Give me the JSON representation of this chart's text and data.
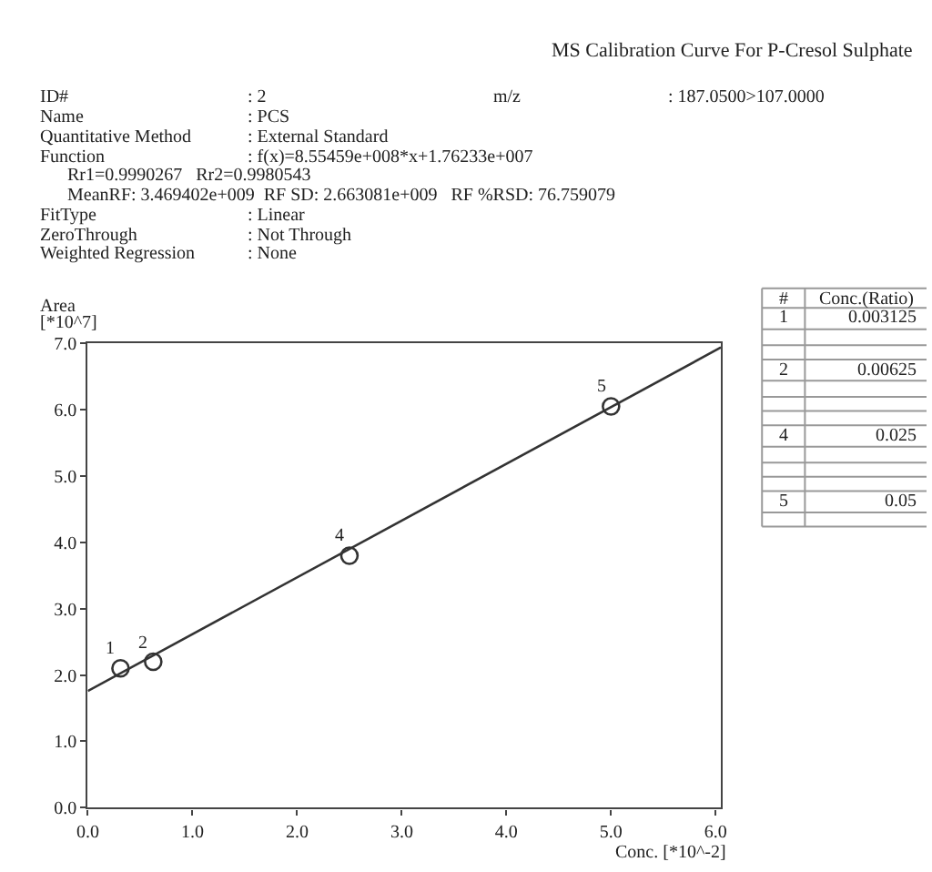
{
  "chart_data": {
    "type": "scatter",
    "title": "MS Calibration Curve For P-Cresol Sulphate",
    "xlabel": "Conc. [*10^-2]",
    "ylabel": "Area\n[*10^7]",
    "x": [
      0.3125,
      0.625,
      2.5,
      5.0
    ],
    "series": [
      {
        "color": "#333333",
        "values": [
          2.1,
          2.2,
          3.8,
          6.05
        ]
      },
      {
        "type": "line",
        "marker": "none",
        "color": "#333333",
        "x": [
          0,
          6.05
        ],
        "values": [
          1.76,
          6.94
        ]
      }
    ],
    "xlim": [
      0,
      6.05
    ],
    "ylim": [
      0,
      7.0
    ],
    "xticks": [
      {
        "value": 0,
        "label": "0.0"
      },
      {
        "value": 1,
        "label": "1.0"
      },
      {
        "value": 2,
        "label": "2.0"
      },
      {
        "value": 3,
        "label": "3.0"
      },
      {
        "value": 4,
        "label": "4.0"
      },
      {
        "value": 5,
        "label": "5.0"
      },
      {
        "value": 6,
        "label": "6.0"
      }
    ],
    "yticks": [
      {
        "value": 0,
        "label": "0.0"
      },
      {
        "value": 1,
        "label": "1.0"
      },
      {
        "value": 2,
        "label": "2.0"
      },
      {
        "value": 3,
        "label": "3.0"
      },
      {
        "value": 4,
        "label": "4.0"
      },
      {
        "value": 5,
        "label": "5.0"
      },
      {
        "value": 6,
        "label": "6.0"
      },
      {
        "value": 7,
        "label": "7.0"
      }
    ],
    "marker": "circle",
    "annotations": [
      "ID#",
      ": 2",
      "m/z",
      ": 187.0500>107.0000",
      "Name",
      ": PCS",
      "Quantitative Method",
      ": External Standard",
      "Function",
      ": f(x)=8.55459e+008*x+1.76233e+007",
      "Rr1=0.9990267   Rr2=0.9980543",
      "MeanRF: 3.469402e+009  RF SD: 2.663081e+009   RF %RSD: 76.759079",
      "FitType",
      ": Linear",
      "ZeroThrough",
      ": Not Through",
      "Weighted Regression",
      ": None",
      "#",
      "Conc.(Ratio)",
      "1",
      "0.003125",
      "2",
      "0.00625",
      "4",
      "0.025",
      "5",
      "0.05",
      {
        "text": "1",
        "x": 0.3125,
        "y": 2.1
      },
      {
        "text": "2",
        "x": 0.625,
        "y": 2.2
      },
      {
        "text": "4",
        "x": 2.5,
        "y": 3.8
      },
      {
        "text": "5",
        "x": 5.0,
        "y": 6.05
      }
    ]
  }
}
